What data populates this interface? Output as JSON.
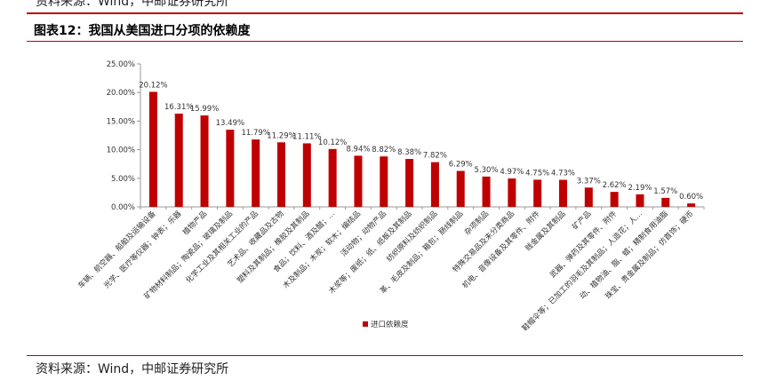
{
  "header": {
    "top_source": "资料来源：Wind，中邮证券研究所",
    "figure_title": "图表12：我国从美国进口分项的依赖度"
  },
  "footer": {
    "source": "资料来源：Wind，中邮证券研究所"
  },
  "colors": {
    "accent": "#c00000",
    "bar": "#c00000",
    "axis": "#999999"
  },
  "chart_data": {
    "type": "bar",
    "categories": [
      "车辆、航空器、船舶及运输设备",
      "光学、医疗等仪器；钟表；乐器",
      "植物产品",
      "矿物材料制品；陶瓷品；玻璃及制品",
      "化学工业及其相关工业的产品",
      "艺术品、收藏品及古物",
      "塑料及其制品；橡胶及其制品",
      "食品；饮料、酒及醋；…",
      "木及制品；木炭；软木；编结品",
      "活动物；动物产品",
      "木浆等；废纸；纸、纸板及其制品",
      "纺织原料及纺织制品",
      "革、毛皮及制品；箱包；肠线制品",
      "杂项制品",
      "特殊交易品及未分类商品",
      "机电、音像设备及其零件、附件",
      "贱金属及其制品",
      "矿产品",
      "武器、弹药及其零件、附件",
      "鞋帽伞等；已加工的羽毛及其制品；人造花；人…",
      "动、植物油、脂、蜡；精制食用油脂",
      "珠宝、贵金属及制品；仿首饰；硬币"
    ],
    "values": [
      20.12,
      16.31,
      15.99,
      13.49,
      11.79,
      11.29,
      11.11,
      10.12,
      8.94,
      8.82,
      8.38,
      7.82,
      6.29,
      5.3,
      4.97,
      4.75,
      4.73,
      3.37,
      2.62,
      2.19,
      1.57,
      0.6
    ],
    "value_labels": [
      "20.12%",
      "16.31%",
      "15.99%",
      "13.49%",
      "11.79%",
      "11.29%",
      "11.11%",
      "10.12%",
      "8.94%",
      "8.82%",
      "8.38%",
      "7.82%",
      "6.29%",
      "5.30%",
      "4.97%",
      "4.75%",
      "4.73%",
      "3.37%",
      "2.62%",
      "2.19%",
      "1.57%",
      "0.60%"
    ],
    "y_ticks": [
      0,
      5,
      10,
      15,
      20,
      25
    ],
    "y_tick_labels": [
      "0.00%",
      "5.00%",
      "10.00%",
      "15.00%",
      "20.00%",
      "25.00%"
    ],
    "ylim": [
      0,
      25
    ],
    "legend": [
      "进口依赖度"
    ],
    "legend_position": "bottom",
    "grid": false,
    "title": "",
    "xlabel": "",
    "ylabel": ""
  }
}
